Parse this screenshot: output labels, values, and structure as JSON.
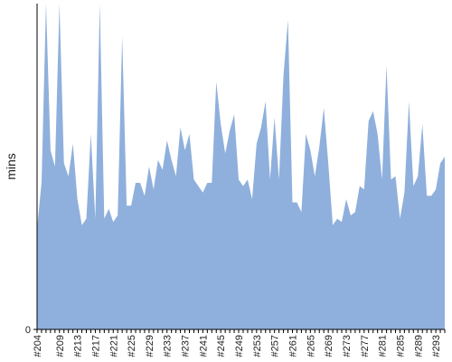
{
  "chart_data": {
    "type": "area",
    "title": "",
    "xlabel": "",
    "ylabel": "mins",
    "grid": false,
    "legend": "none",
    "fill_color": "#8fb0dc",
    "axis_color": "#000000",
    "ylim": [
      0,
      100
    ],
    "yticks": [
      0
    ],
    "x": [
      "#204",
      "#205",
      "#206",
      "#207",
      "#208",
      "#209",
      "#210",
      "#211",
      "#212",
      "#213",
      "#214",
      "#215",
      "#216",
      "#217",
      "#218",
      "#219",
      "#220",
      "#221",
      "#222",
      "#223",
      "#224",
      "#225",
      "#226",
      "#227",
      "#228",
      "#229",
      "#230",
      "#231",
      "#232",
      "#233",
      "#234",
      "#235",
      "#236",
      "#237",
      "#238",
      "#239",
      "#240",
      "#241",
      "#242",
      "#243",
      "#244",
      "#245",
      "#246",
      "#247",
      "#248",
      "#249",
      "#250",
      "#251",
      "#252",
      "#253",
      "#254",
      "#255",
      "#256",
      "#257",
      "#258",
      "#259",
      "#260",
      "#261",
      "#262",
      "#263",
      "#264",
      "#265",
      "#266",
      "#267",
      "#268",
      "#269",
      "#270",
      "#271",
      "#272",
      "#273",
      "#274",
      "#275",
      "#276",
      "#277",
      "#278",
      "#279",
      "#280",
      "#281",
      "#282",
      "#283",
      "#284",
      "#285",
      "#286",
      "#287",
      "#288",
      "#289",
      "#290",
      "#291",
      "#292",
      "#293",
      "#294",
      "#295"
    ],
    "xticks": [
      "#204",
      "#209",
      "#213",
      "#217",
      "#221",
      "#225",
      "#229",
      "#233",
      "#237",
      "#241",
      "#245",
      "#249",
      "#253",
      "#257",
      "#261",
      "#265",
      "#269",
      "#273",
      "#277",
      "#281",
      "#285",
      "#289",
      "#293"
    ],
    "values": [
      31,
      45,
      100,
      55,
      50,
      100,
      51,
      47,
      57,
      40,
      32,
      34,
      60,
      34,
      100,
      34,
      37,
      33,
      35,
      90,
      38,
      38,
      45,
      45,
      41,
      50,
      43,
      52,
      49,
      58,
      52,
      47,
      62,
      55,
      60,
      46,
      44,
      42,
      45,
      45,
      76,
      63,
      54,
      61,
      66,
      46,
      44,
      46,
      40,
      57,
      62,
      70,
      46,
      65,
      46,
      78,
      95,
      39,
      39,
      36,
      60,
      55,
      47,
      56,
      68,
      51,
      32,
      34,
      33,
      40,
      35,
      36,
      44,
      43,
      64,
      67,
      60,
      46,
      81,
      46,
      47,
      34,
      42,
      70,
      44,
      47,
      63,
      41,
      41,
      43,
      51,
      53
    ]
  }
}
